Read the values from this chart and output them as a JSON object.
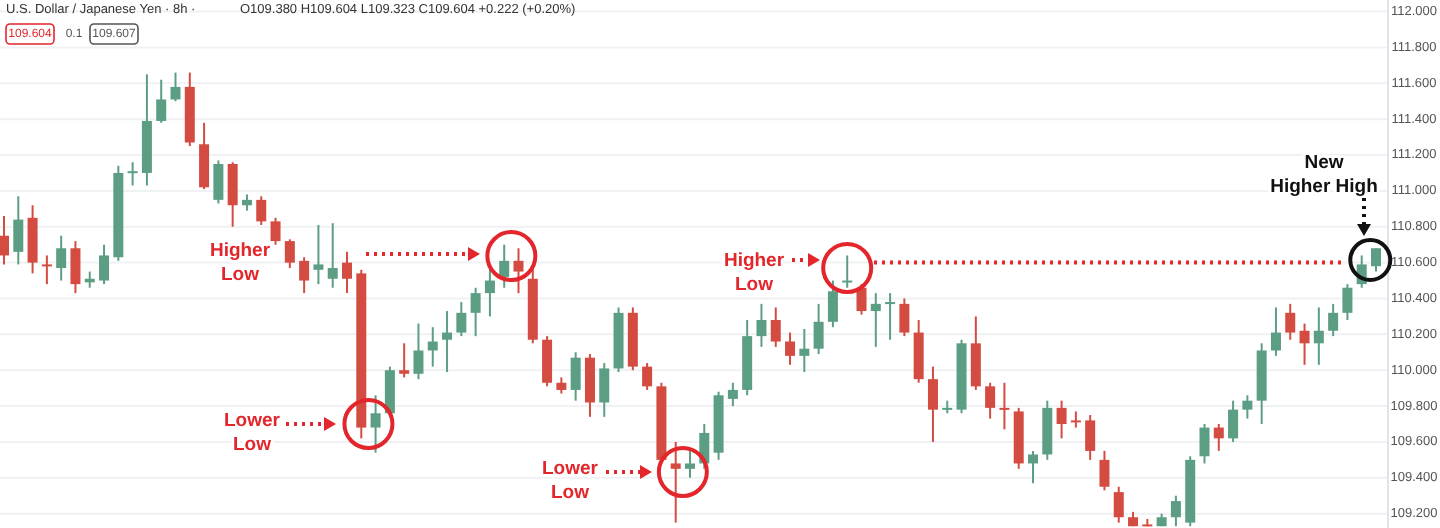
{
  "chart_data": {
    "type": "candlestick",
    "title": "U.S. Dollar / Japanese Yen · 8h ·",
    "subtitle": "O109.380 H109.604 L109.323 C109.604 +0.222 (+0.20%)",
    "categories": [
      null,
      null,
      null,
      null,
      null,
      null,
      null,
      null,
      null,
      null,
      null,
      null,
      null,
      null,
      null,
      null,
      null,
      null,
      null,
      null,
      null,
      null,
      null,
      null,
      null,
      null,
      null,
      null,
      null,
      null,
      null,
      null,
      null,
      null,
      null,
      null,
      null,
      null,
      null,
      null,
      null,
      null,
      null,
      null,
      null,
      null,
      null,
      null,
      null,
      null,
      null,
      null,
      null,
      null,
      null,
      null,
      null,
      null,
      null,
      null,
      null,
      null,
      null,
      null,
      null,
      null,
      null,
      null,
      null,
      null,
      null,
      null,
      null,
      null,
      null,
      null,
      null,
      null,
      null,
      null,
      null,
      null,
      null,
      null,
      null,
      null,
      null,
      null,
      null,
      null,
      null,
      null,
      null,
      null,
      null,
      null,
      null
    ],
    "ohlc": [
      [
        110.75,
        110.86,
        110.59,
        110.64
      ],
      [
        110.66,
        110.97,
        110.59,
        110.84
      ],
      [
        110.85,
        110.92,
        110.54,
        110.6
      ],
      [
        110.59,
        110.64,
        110.48,
        110.58
      ],
      [
        110.57,
        110.75,
        110.5,
        110.68
      ],
      [
        110.68,
        110.72,
        110.43,
        110.48
      ],
      [
        110.49,
        110.55,
        110.46,
        110.51
      ],
      [
        110.5,
        110.7,
        110.48,
        110.64
      ],
      [
        110.63,
        111.14,
        110.61,
        111.1
      ],
      [
        111.1,
        111.16,
        111.03,
        111.11
      ],
      [
        111.1,
        111.65,
        111.03,
        111.39
      ],
      [
        111.39,
        111.62,
        111.38,
        111.51
      ],
      [
        111.51,
        111.66,
        111.5,
        111.58
      ],
      [
        111.58,
        111.66,
        111.25,
        111.27
      ],
      [
        111.26,
        111.38,
        111.01,
        111.02
      ],
      [
        110.95,
        111.17,
        110.93,
        111.15
      ],
      [
        111.15,
        111.16,
        110.8,
        110.92
      ],
      [
        110.92,
        110.98,
        110.89,
        110.95
      ],
      [
        110.95,
        110.97,
        110.81,
        110.83
      ],
      [
        110.83,
        110.85,
        110.7,
        110.72
      ],
      [
        110.72,
        110.73,
        110.57,
        110.6
      ],
      [
        110.61,
        110.63,
        110.43,
        110.5
      ],
      [
        110.56,
        110.81,
        110.48,
        110.59
      ],
      [
        110.51,
        110.82,
        110.46,
        110.57
      ],
      [
        110.6,
        110.66,
        110.43,
        110.51
      ],
      [
        110.54,
        110.56,
        109.62,
        109.68
      ],
      [
        109.68,
        109.86,
        109.54,
        109.76
      ],
      [
        109.76,
        110.02,
        109.74,
        110.0
      ],
      [
        110.0,
        110.15,
        109.96,
        109.98
      ],
      [
        109.98,
        110.26,
        109.95,
        110.11
      ],
      [
        110.11,
        110.24,
        110.02,
        110.16
      ],
      [
        110.17,
        110.33,
        109.99,
        110.21
      ],
      [
        110.21,
        110.38,
        110.19,
        110.32
      ],
      [
        110.32,
        110.46,
        110.19,
        110.43
      ],
      [
        110.43,
        110.57,
        110.3,
        110.5
      ],
      [
        110.52,
        110.7,
        110.46,
        110.61
      ],
      [
        110.61,
        110.68,
        110.43,
        110.55
      ],
      [
        110.51,
        110.57,
        110.15,
        110.17
      ],
      [
        110.17,
        110.19,
        109.91,
        109.93
      ],
      [
        109.93,
        109.96,
        109.87,
        109.89
      ],
      [
        109.89,
        110.1,
        109.83,
        110.07
      ],
      [
        110.07,
        110.09,
        109.74,
        109.82
      ],
      [
        109.82,
        110.04,
        109.74,
        110.01
      ],
      [
        110.01,
        110.35,
        109.99,
        110.32
      ],
      [
        110.32,
        110.35,
        110.0,
        110.02
      ],
      [
        110.02,
        110.04,
        109.89,
        109.91
      ],
      [
        109.91,
        109.93,
        109.48,
        109.5
      ],
      [
        109.48,
        109.6,
        109.15,
        109.45
      ],
      [
        109.45,
        109.55,
        109.4,
        109.48
      ],
      [
        109.48,
        109.7,
        109.45,
        109.65
      ],
      [
        109.54,
        109.88,
        109.5,
        109.86
      ],
      [
        109.84,
        109.93,
        109.8,
        109.89
      ],
      [
        109.89,
        110.28,
        109.86,
        110.19
      ],
      [
        110.19,
        110.37,
        110.13,
        110.28
      ],
      [
        110.28,
        110.35,
        110.13,
        110.16
      ],
      [
        110.16,
        110.21,
        110.03,
        110.08
      ],
      [
        110.08,
        110.23,
        109.99,
        110.12
      ],
      [
        110.12,
        110.37,
        110.09,
        110.27
      ],
      [
        110.27,
        110.5,
        110.24,
        110.44
      ],
      [
        110.49,
        110.64,
        110.46,
        110.5
      ],
      [
        110.46,
        110.48,
        110.31,
        110.33
      ],
      [
        110.33,
        110.43,
        110.13,
        110.37
      ],
      [
        110.37,
        110.43,
        110.17,
        110.38
      ],
      [
        110.37,
        110.4,
        110.19,
        110.21
      ],
      [
        110.21,
        110.28,
        109.93,
        109.95
      ],
      [
        109.95,
        110.02,
        109.6,
        109.78
      ],
      [
        109.78,
        109.83,
        109.76,
        109.79
      ],
      [
        109.78,
        110.17,
        109.76,
        110.15
      ],
      [
        110.15,
        110.3,
        109.89,
        109.91
      ],
      [
        109.91,
        109.93,
        109.73,
        109.79
      ],
      [
        109.79,
        109.93,
        109.67,
        109.78
      ],
      [
        109.77,
        109.79,
        109.45,
        109.48
      ],
      [
        109.48,
        109.55,
        109.37,
        109.53
      ],
      [
        109.53,
        109.83,
        109.5,
        109.79
      ],
      [
        109.79,
        109.83,
        109.62,
        109.7
      ],
      [
        109.72,
        109.77,
        109.68,
        109.71
      ],
      [
        109.72,
        109.75,
        109.5,
        109.55
      ],
      [
        109.5,
        109.55,
        109.33,
        109.35
      ],
      [
        109.32,
        109.35,
        109.15,
        109.18
      ],
      [
        109.18,
        109.21,
        109.13,
        109.13
      ],
      [
        109.14,
        109.17,
        109.13,
        109.13
      ],
      [
        109.13,
        109.2,
        109.13,
        109.18
      ],
      [
        109.18,
        109.3,
        109.13,
        109.27
      ],
      [
        109.15,
        109.52,
        109.13,
        109.5
      ],
      [
        109.52,
        109.7,
        109.48,
        109.68
      ],
      [
        109.68,
        109.7,
        109.55,
        109.62
      ],
      [
        109.62,
        109.83,
        109.6,
        109.78
      ],
      [
        109.78,
        109.86,
        109.73,
        109.83
      ],
      [
        109.83,
        110.15,
        109.7,
        110.11
      ],
      [
        110.11,
        110.35,
        110.08,
        110.21
      ],
      [
        110.32,
        110.37,
        110.17,
        110.21
      ],
      [
        110.22,
        110.26,
        110.03,
        110.15
      ],
      [
        110.15,
        110.35,
        110.03,
        110.22
      ],
      [
        110.22,
        110.37,
        110.19,
        110.32
      ],
      [
        110.32,
        110.48,
        110.28,
        110.46
      ],
      [
        110.48,
        110.64,
        110.46,
        110.59
      ],
      [
        110.58,
        110.68,
        110.55,
        110.68
      ]
    ],
    "colors": [
      "#d44b42",
      "#5c9e84",
      "#d44b42",
      "#d44b42",
      "#5c9e84",
      "#d44b42",
      "#5c9e84",
      "#5c9e84",
      "#5c9e84",
      "#5c9e84",
      "#5c9e84",
      "#5c9e84",
      "#5c9e84",
      "#d44b42",
      "#d44b42",
      "#5c9e84",
      "#d44b42",
      "#5c9e84",
      "#d44b42",
      "#d44b42",
      "#d44b42",
      "#d44b42",
      "#5c9e84",
      "#5c9e84",
      "#d44b42",
      "#d44b42",
      "#5c9e84",
      "#5c9e84",
      "#d44b42",
      "#5c9e84",
      "#5c9e84",
      "#5c9e84",
      "#5c9e84",
      "#5c9e84",
      "#5c9e84",
      "#5c9e84",
      "#d44b42",
      "#d44b42",
      "#d44b42",
      "#d44b42",
      "#5c9e84",
      "#d44b42",
      "#5c9e84",
      "#5c9e84",
      "#d44b42",
      "#d44b42",
      "#d44b42",
      "#d44b42",
      "#5c9e84",
      "#5c9e84",
      "#5c9e84",
      "#5c9e84",
      "#5c9e84",
      "#5c9e84",
      "#d44b42",
      "#d44b42",
      "#5c9e84",
      "#5c9e84",
      "#5c9e84",
      "#5c9e84",
      "#d44b42",
      "#5c9e84",
      "#5c9e84",
      "#d44b42",
      "#d44b42",
      "#d44b42",
      "#5c9e84",
      "#5c9e84",
      "#d44b42",
      "#d44b42",
      "#d44b42",
      "#d44b42",
      "#5c9e84",
      "#5c9e84",
      "#d44b42",
      "#d44b42",
      "#d44b42",
      "#d44b42",
      "#d44b42",
      "#d44b42",
      "#d44b42",
      "#5c9e84",
      "#5c9e84",
      "#5c9e84",
      "#5c9e84",
      "#d44b42",
      "#5c9e84",
      "#5c9e84",
      "#5c9e84",
      "#5c9e84",
      "#d44b42",
      "#d44b42",
      "#5c9e84",
      "#5c9e84",
      "#5c9e84",
      "#5c9e84",
      "#5c9e84"
    ],
    "ylim": [
      109.12,
      112.02
    ],
    "yticks": [
      {
        "value": 109.2,
        "label": "109.200"
      },
      {
        "value": 109.4,
        "label": "109.400"
      },
      {
        "value": 109.6,
        "label": "109.600"
      },
      {
        "value": 109.8,
        "label": "109.800"
      },
      {
        "value": 110,
        "label": "110.000"
      },
      {
        "value": 110.2,
        "label": "110.200"
      },
      {
        "value": 110.4,
        "label": "110.400"
      },
      {
        "value": 110.6,
        "label": "110.600"
      },
      {
        "value": 110.8,
        "label": "110.800"
      },
      {
        "value": 111,
        "label": "111.000"
      },
      {
        "value": 111.2,
        "label": "111.200"
      },
      {
        "value": 111.4,
        "label": "111.400"
      },
      {
        "value": 111.6,
        "label": "111.600"
      },
      {
        "value": 111.8,
        "label": "111.800"
      },
      {
        "value": 112,
        "label": "112.000"
      }
    ],
    "grid": "y",
    "ref_lines": [
      {
        "axis": "y",
        "value": 110.6,
        "color": "#e3262b",
        "line_style": "dotted"
      }
    ],
    "annotations": [
      "109.604",
      "0.1",
      "109.607",
      "Higher Low",
      "Lower Low",
      "Lower Low",
      "Higher Low",
      "New Higher High"
    ]
  }
}
